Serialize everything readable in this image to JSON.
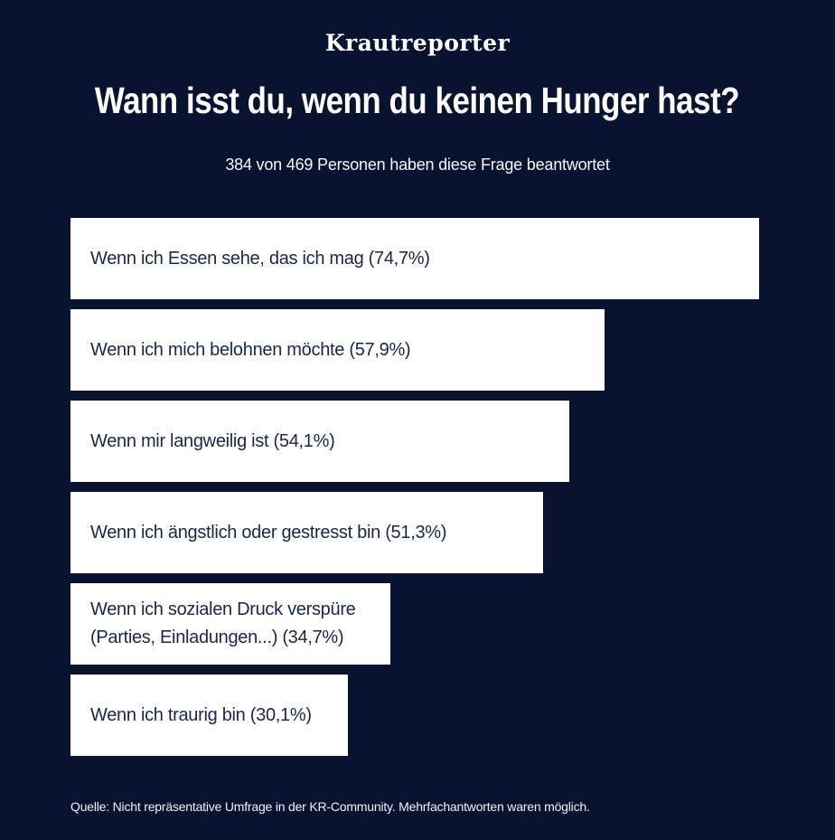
{
  "header": {
    "logo": "Krautreporter"
  },
  "chart_data": {
    "type": "bar",
    "orientation": "horizontal",
    "title": "Wann isst du, wenn du keinen Hunger hast?",
    "subtitle": "384 von 469 Personen haben diese Frage beantwortet",
    "categories": [
      "Wenn ich Essen sehe, das ich mag",
      "Wenn ich mich belohnen möchte",
      "Wenn mir langweilig ist",
      "Wenn ich ängstlich oder gestresst bin",
      "Wenn ich sozialen Druck verspüre (Parties, Einladungen...)",
      "Wenn ich traurig bin"
    ],
    "values": [
      74.7,
      57.9,
      54.1,
      51.3,
      34.7,
      30.1
    ],
    "labels_display": [
      "Wenn ich Essen sehe, das ich mag (74,7%)",
      "Wenn ich mich belohnen möchte (57,9%)",
      "Wenn mir langweilig ist (54,1%)",
      "Wenn ich ängstlich oder gestresst bin (51,3%)",
      "Wenn ich sozialen Druck verspüre\n(Parties, Einladungen...) (34,7%)",
      "Wenn ich traurig bin (30,1%)"
    ],
    "value_unit": "%",
    "xlim": [
      0,
      100
    ],
    "grid": false,
    "legend": false,
    "colors": {
      "background": "#081330",
      "bar_fill": "#ffffff",
      "bar_label": "#1a2748",
      "heading_text": "#ffffff"
    }
  },
  "footer": {
    "source": "Quelle: Nicht repräsentative Umfrage in der KR-Community. Mehrfachantworten waren möglich."
  }
}
